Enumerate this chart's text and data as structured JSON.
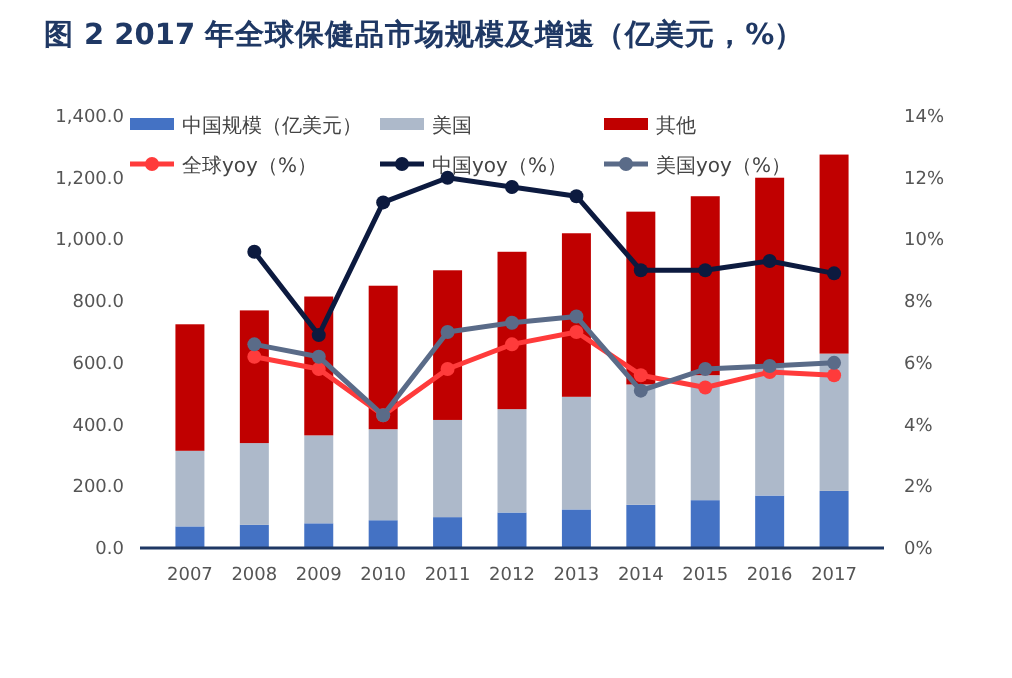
{
  "chart_data": {
    "type": "bar",
    "title": "图 2 2017 年全球保健品市场规模及增速（亿美元，%）",
    "stacked": true,
    "legend": "top",
    "grid": false,
    "marker": "circle",
    "categories": [
      "2007",
      "2008",
      "2009",
      "2010",
      "2011",
      "2012",
      "2013",
      "2014",
      "2015",
      "2016",
      "2017"
    ],
    "ylim": [
      0,
      1400
    ],
    "yticks": [
      {
        "value": 0,
        "label": "0.0"
      },
      {
        "value": 200,
        "label": "200.0"
      },
      {
        "value": 400,
        "label": "400.0"
      },
      {
        "value": 600,
        "label": "600.0"
      },
      {
        "value": 800,
        "label": "800.0"
      },
      {
        "value": 1000,
        "label": "1,000.0"
      },
      {
        "value": 1200,
        "label": "1,200.0"
      },
      {
        "value": 1400,
        "label": "1,400.0"
      }
    ],
    "y2lim": [
      0,
      14
    ],
    "y2ticks": [
      {
        "value": 0,
        "label": "0%"
      },
      {
        "value": 2,
        "label": "2%"
      },
      {
        "value": 4,
        "label": "4%"
      },
      {
        "value": 6,
        "label": "6%"
      },
      {
        "value": 8,
        "label": "8%"
      },
      {
        "value": 10,
        "label": "10%"
      },
      {
        "value": 12,
        "label": "12%"
      },
      {
        "value": 14,
        "label": "14%"
      }
    ],
    "series": [
      {
        "name": "中国规模（亿美元）",
        "color": "#4472c4",
        "values": [
          70,
          75,
          80,
          90,
          100,
          115,
          125,
          140,
          155,
          170,
          185
        ]
      },
      {
        "name": "美国",
        "color": "#adb9ca",
        "values": [
          245,
          265,
          285,
          295,
          315,
          335,
          365,
          390,
          405,
          425,
          445
        ]
      },
      {
        "name": "其他",
        "color": "#c00000",
        "values": [
          410,
          430,
          450,
          465,
          485,
          510,
          530,
          560,
          580,
          605,
          645
        ]
      },
      {
        "name": "全球yoy（%）",
        "type": "line",
        "axis": "y2",
        "color": "#ff3b3b",
        "values": [
          null,
          6.2,
          5.8,
          4.3,
          5.8,
          6.6,
          7.0,
          5.6,
          5.2,
          5.7,
          5.6
        ]
      },
      {
        "name": "中国yoy（%）",
        "type": "line",
        "axis": "y2",
        "color": "#0c1a3f",
        "values": [
          null,
          9.6,
          6.9,
          11.2,
          12.0,
          11.7,
          11.4,
          9.0,
          9.0,
          9.3,
          8.9
        ]
      },
      {
        "name": "美国yoy（%）",
        "type": "line",
        "axis": "y2",
        "color": "#5a6b88",
        "values": [
          null,
          6.6,
          6.2,
          4.3,
          7.0,
          7.3,
          7.5,
          5.1,
          5.8,
          5.9,
          6.0
        ]
      }
    ]
  }
}
